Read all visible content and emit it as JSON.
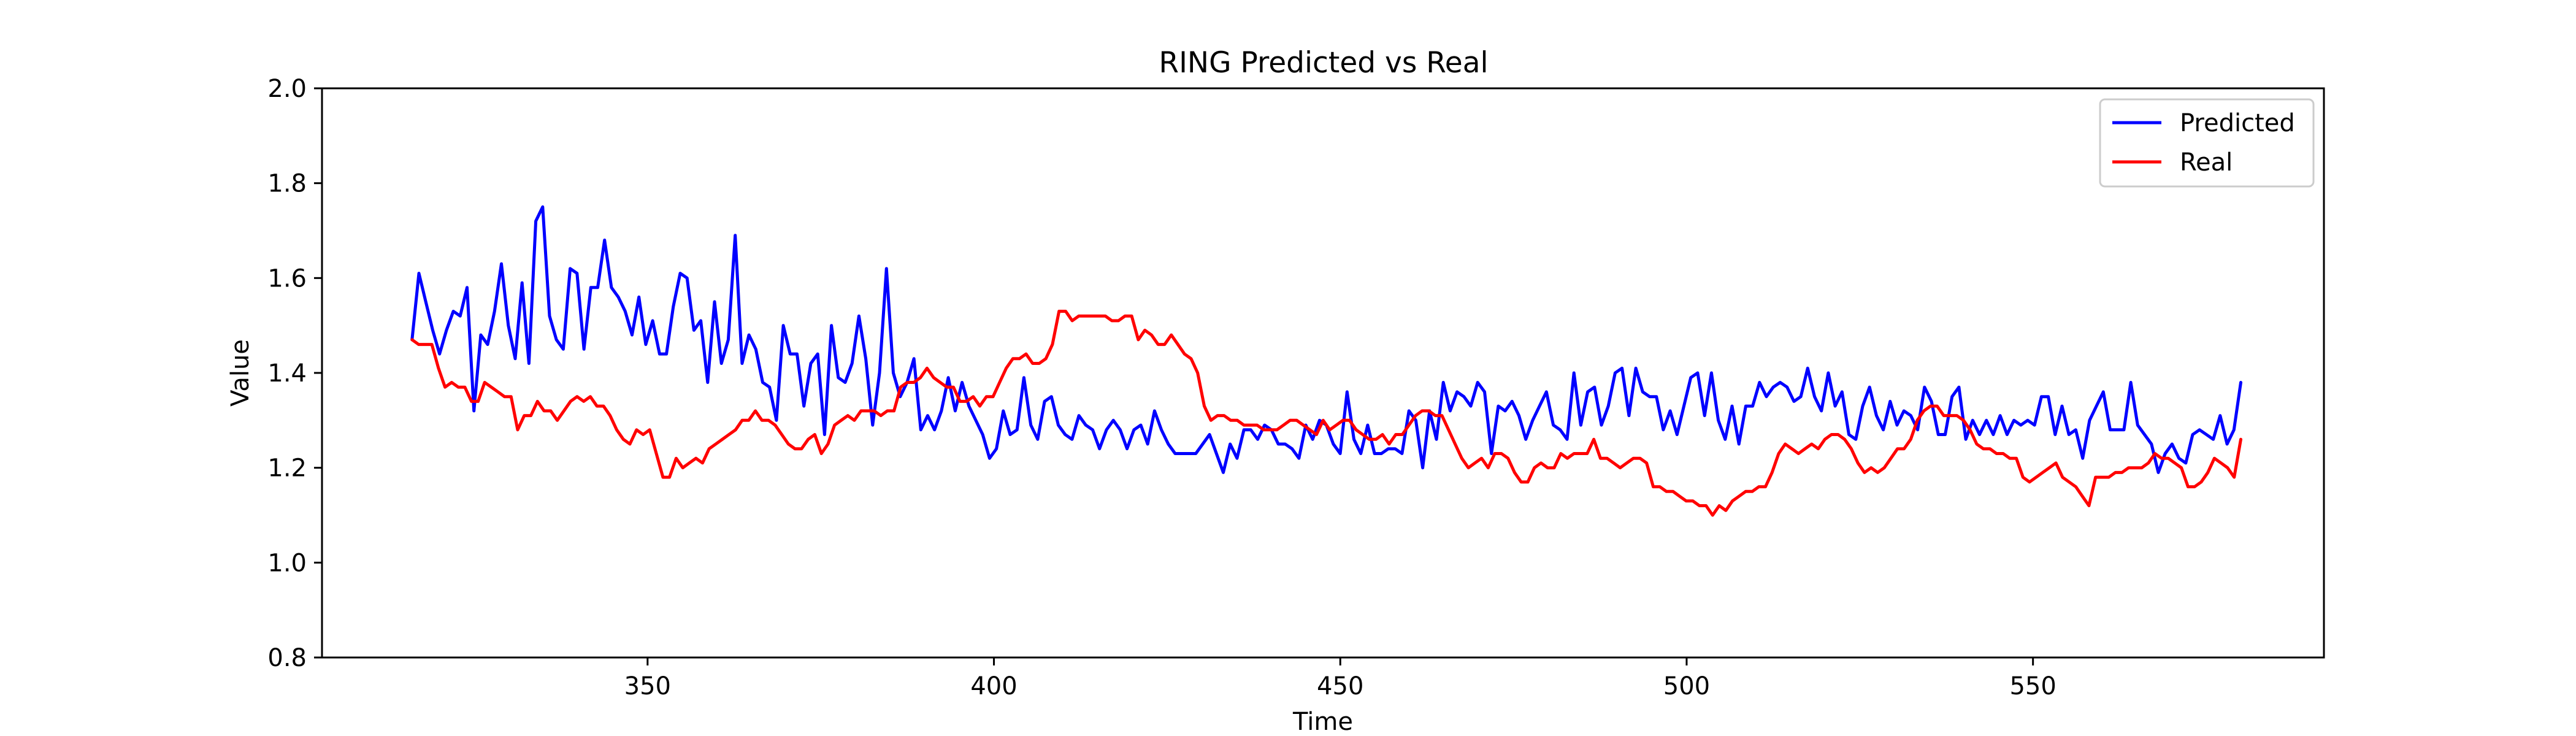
{
  "chart_data": {
    "type": "line",
    "title": "RING Predicted vs Real",
    "xlabel": "Time",
    "ylabel": "Value",
    "xlim": [
      303,
      592
    ],
    "ylim": [
      0.8,
      2.0
    ],
    "x_ticks": [
      350,
      400,
      450,
      500,
      550
    ],
    "y_ticks": [
      0.8,
      1.0,
      1.2,
      1.4,
      1.6,
      1.8,
      2.0
    ],
    "x_tick_labels": [
      "350",
      "400",
      "450",
      "500",
      "550"
    ],
    "y_tick_labels": [
      "0.8",
      "1.0",
      "1.2",
      "1.4",
      "1.6",
      "1.8",
      "2.0"
    ],
    "grid": false,
    "legend_position": "top-right",
    "x_start": 316,
    "x_end": 580,
    "series": [
      {
        "name": "Predicted",
        "color": "#0000ff",
        "values": [
          1.47,
          1.61,
          1.55,
          1.49,
          1.44,
          1.49,
          1.53,
          1.52,
          1.58,
          1.32,
          1.48,
          1.46,
          1.53,
          1.63,
          1.5,
          1.43,
          1.59,
          1.42,
          1.72,
          1.75,
          1.52,
          1.47,
          1.45,
          1.62,
          1.61,
          1.45,
          1.58,
          1.58,
          1.68,
          1.58,
          1.56,
          1.53,
          1.48,
          1.56,
          1.46,
          1.51,
          1.44,
          1.44,
          1.54,
          1.61,
          1.6,
          1.49,
          1.51,
          1.38,
          1.55,
          1.42,
          1.47,
          1.69,
          1.42,
          1.48,
          1.45,
          1.38,
          1.37,
          1.3,
          1.5,
          1.44,
          1.44,
          1.33,
          1.42,
          1.44,
          1.27,
          1.5,
          1.39,
          1.38,
          1.42,
          1.52,
          1.43,
          1.29,
          1.4,
          1.62,
          1.4,
          1.35,
          1.38,
          1.43,
          1.28,
          1.31,
          1.28,
          1.32,
          1.39,
          1.32,
          1.38,
          1.33,
          1.3,
          1.27,
          1.22,
          1.24,
          1.32,
          1.27,
          1.28,
          1.39,
          1.29,
          1.26,
          1.34,
          1.35,
          1.29,
          1.27,
          1.26,
          1.31,
          1.29,
          1.28,
          1.24,
          1.28,
          1.3,
          1.28,
          1.24,
          1.28,
          1.29,
          1.25,
          1.32,
          1.28,
          1.25,
          1.23,
          1.23,
          1.23,
          1.23,
          1.25,
          1.27,
          1.23,
          1.19,
          1.25,
          1.22,
          1.28,
          1.28,
          1.26,
          1.29,
          1.28,
          1.25,
          1.25,
          1.24,
          1.22,
          1.29,
          1.26,
          1.3,
          1.29,
          1.25,
          1.23,
          1.36,
          1.26,
          1.23,
          1.29,
          1.23,
          1.23,
          1.24,
          1.24,
          1.23,
          1.32,
          1.3,
          1.2,
          1.32,
          1.26,
          1.38,
          1.32,
          1.36,
          1.35,
          1.33,
          1.38,
          1.36,
          1.23,
          1.33,
          1.32,
          1.34,
          1.31,
          1.26,
          1.3,
          1.33,
          1.36,
          1.29,
          1.28,
          1.26,
          1.4,
          1.29,
          1.36,
          1.37,
          1.29,
          1.33,
          1.4,
          1.41,
          1.31,
          1.41,
          1.36,
          1.35,
          1.35,
          1.28,
          1.32,
          1.27,
          1.33,
          1.39,
          1.4,
          1.31,
          1.4,
          1.3,
          1.26,
          1.33,
          1.25,
          1.33,
          1.33,
          1.38,
          1.35,
          1.37,
          1.38,
          1.37,
          1.34,
          1.35,
          1.41,
          1.35,
          1.32,
          1.4,
          1.33,
          1.36,
          1.27,
          1.26,
          1.33,
          1.37,
          1.31,
          1.28,
          1.34,
          1.29,
          1.32,
          1.31,
          1.28,
          1.37,
          1.34,
          1.27,
          1.27,
          1.35,
          1.37,
          1.26,
          1.3,
          1.27,
          1.3,
          1.27,
          1.31,
          1.27,
          1.3,
          1.29,
          1.3,
          1.29,
          1.35,
          1.35,
          1.27,
          1.33,
          1.27,
          1.28,
          1.22,
          1.3,
          1.33,
          1.36,
          1.28,
          1.28,
          1.28,
          1.38,
          1.29,
          1.27,
          1.25,
          1.19,
          1.23,
          1.25,
          1.22,
          1.21,
          1.27,
          1.28,
          1.27,
          1.26,
          1.31,
          1.25,
          1.28,
          1.38
        ]
      },
      {
        "name": "Real",
        "color": "#ff0000",
        "values": [
          1.47,
          1.46,
          1.46,
          1.46,
          1.41,
          1.37,
          1.38,
          1.37,
          1.37,
          1.34,
          1.34,
          1.38,
          1.37,
          1.36,
          1.35,
          1.35,
          1.28,
          1.31,
          1.31,
          1.34,
          1.32,
          1.32,
          1.3,
          1.32,
          1.34,
          1.35,
          1.34,
          1.35,
          1.33,
          1.33,
          1.31,
          1.28,
          1.26,
          1.25,
          1.28,
          1.27,
          1.28,
          1.23,
          1.18,
          1.18,
          1.22,
          1.2,
          1.21,
          1.22,
          1.21,
          1.24,
          1.25,
          1.26,
          1.27,
          1.28,
          1.3,
          1.3,
          1.32,
          1.3,
          1.3,
          1.29,
          1.27,
          1.25,
          1.24,
          1.24,
          1.26,
          1.27,
          1.23,
          1.25,
          1.29,
          1.3,
          1.31,
          1.3,
          1.32,
          1.32,
          1.32,
          1.31,
          1.32,
          1.32,
          1.37,
          1.38,
          1.38,
          1.39,
          1.41,
          1.39,
          1.38,
          1.37,
          1.37,
          1.34,
          1.34,
          1.35,
          1.33,
          1.35,
          1.35,
          1.38,
          1.41,
          1.43,
          1.43,
          1.44,
          1.42,
          1.42,
          1.43,
          1.46,
          1.53,
          1.53,
          1.51,
          1.52,
          1.52,
          1.52,
          1.52,
          1.52,
          1.51,
          1.51,
          1.52,
          1.52,
          1.47,
          1.49,
          1.48,
          1.46,
          1.46,
          1.48,
          1.46,
          1.44,
          1.43,
          1.4,
          1.33,
          1.3,
          1.31,
          1.31,
          1.3,
          1.3,
          1.29,
          1.29,
          1.29,
          1.28,
          1.28,
          1.28,
          1.29,
          1.3,
          1.3,
          1.29,
          1.28,
          1.27,
          1.3,
          1.28,
          1.29,
          1.3,
          1.3,
          1.28,
          1.27,
          1.26,
          1.26,
          1.27,
          1.25,
          1.27,
          1.27,
          1.29,
          1.31,
          1.32,
          1.32,
          1.31,
          1.31,
          1.28,
          1.25,
          1.22,
          1.2,
          1.21,
          1.22,
          1.2,
          1.23,
          1.23,
          1.22,
          1.19,
          1.17,
          1.17,
          1.2,
          1.21,
          1.2,
          1.2,
          1.23,
          1.22,
          1.23,
          1.23,
          1.23,
          1.26,
          1.22,
          1.22,
          1.21,
          1.2,
          1.21,
          1.22,
          1.22,
          1.21,
          1.16,
          1.16,
          1.15,
          1.15,
          1.14,
          1.13,
          1.13,
          1.12,
          1.12,
          1.1,
          1.12,
          1.11,
          1.13,
          1.14,
          1.15,
          1.15,
          1.16,
          1.16,
          1.19,
          1.23,
          1.25,
          1.24,
          1.23,
          1.24,
          1.25,
          1.24,
          1.26,
          1.27,
          1.27,
          1.26,
          1.24,
          1.21,
          1.19,
          1.2,
          1.19,
          1.2,
          1.22,
          1.24,
          1.24,
          1.26,
          1.3,
          1.32,
          1.33,
          1.33,
          1.31,
          1.31,
          1.31,
          1.3,
          1.28,
          1.25,
          1.24,
          1.24,
          1.23,
          1.23,
          1.22,
          1.22,
          1.18,
          1.17,
          1.18,
          1.19,
          1.2,
          1.21,
          1.18,
          1.17,
          1.16,
          1.14,
          1.12,
          1.18,
          1.18,
          1.18,
          1.19,
          1.19,
          1.2,
          1.2,
          1.2,
          1.21,
          1.23,
          1.22,
          1.22,
          1.21,
          1.2,
          1.16,
          1.16,
          1.17,
          1.19,
          1.22,
          1.21,
          1.2,
          1.18,
          1.26
        ]
      }
    ]
  }
}
